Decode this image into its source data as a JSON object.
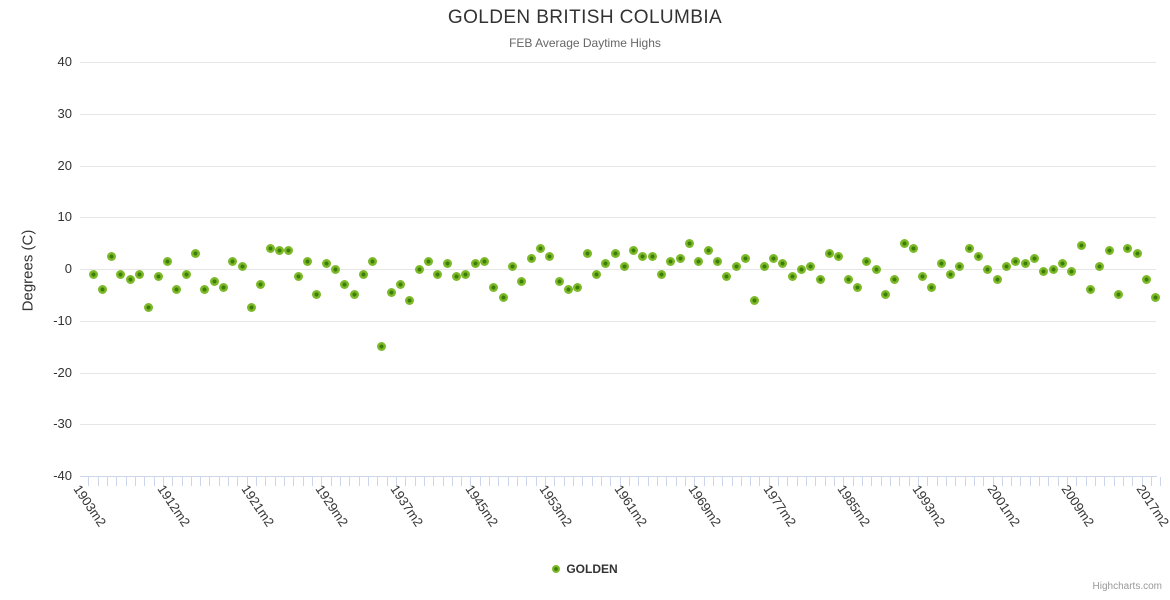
{
  "chart": {
    "title": "GOLDEN BRITISH COLUMBIA",
    "subtitle": "FEB Average Daytime Highs",
    "y_axis_title": "Degrees (C)",
    "legend_label": "GOLDEN",
    "credit": "Highcharts.com"
  },
  "colors": {
    "marker_outer": "#7bb929",
    "marker_center": "#3e7d07",
    "gridline": "#e6e6e6",
    "axis_line": "#ccd6eb",
    "title_text": "#333333",
    "subtitle_text": "#666666",
    "credit_text": "#999999"
  },
  "chart_data": {
    "type": "scatter",
    "title": "GOLDEN BRITISH COLUMBIA",
    "subtitle": "FEB Average Daytime Highs",
    "xlabel": "",
    "ylabel": "Degrees (C)",
    "ylim": [
      -40,
      40
    ],
    "ytick_step": 10,
    "ytick_labels": [
      "40",
      "30",
      "20",
      "10",
      "0",
      "-10",
      "-20",
      "-30",
      "-40"
    ],
    "x_range": [
      1903,
      2017
    ],
    "x_step": 1,
    "x_suffix": "m2",
    "xtick_labels": [
      "1903m2",
      "1912m2",
      "1921m2",
      "1929m2",
      "1937m2",
      "1945m2",
      "1953m2",
      "1961m2",
      "1969m2",
      "1977m2",
      "1985m2",
      "1993m2",
      "2001m2",
      "2009m2",
      "2017m2"
    ],
    "grid": true,
    "legend_position": "bottom-center",
    "series": [
      {
        "name": "GOLDEN",
        "color": "#7bb929",
        "values": [
          -1,
          -4,
          2.5,
          -1,
          -2,
          -1,
          -7.5,
          -1.5,
          1.5,
          -4,
          -1,
          3,
          -4,
          -2.5,
          -3.5,
          1.5,
          0.5,
          -7.5,
          -3,
          4,
          3.5,
          3.5,
          -1.5,
          1.5,
          -5,
          1,
          0,
          -3,
          -5,
          -1,
          1.5,
          -15,
          -4.5,
          -3,
          -6,
          0,
          1.5,
          -1,
          1,
          -1.5,
          -1,
          1,
          1.5,
          -3.5,
          -5.5,
          0.5,
          -2.5,
          2,
          4,
          2.5,
          -2.5,
          -4,
          -3.5,
          3,
          -1,
          1,
          3,
          0.5,
          3.5,
          2.5,
          2.5,
          -1,
          1.5,
          2,
          5,
          1.5,
          3.5,
          1.5,
          -1.5,
          0.5,
          2,
          -6,
          0.5,
          2,
          1,
          -1.5,
          0,
          0.5,
          -2,
          3,
          2.5,
          -2,
          -3.5,
          1.5,
          0,
          -5,
          -2,
          5,
          4,
          -1.5,
          -3.5,
          1,
          -1,
          0.5,
          4,
          2.5,
          0,
          -2,
          0.5,
          1.5,
          1,
          2,
          -0.5,
          0,
          1,
          -0.5,
          4.5,
          -4,
          0.5,
          3.5,
          -5,
          4,
          3,
          -2,
          -5.5
        ]
      }
    ]
  }
}
